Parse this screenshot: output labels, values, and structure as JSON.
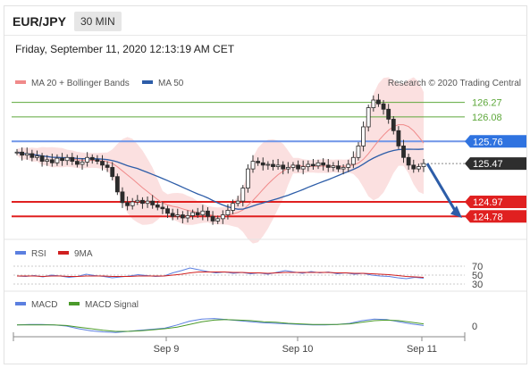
{
  "header": {
    "symbol": "EUR/JPY",
    "timeframe": "30 MIN"
  },
  "datetime": "Friday, September 11, 2020 12:13:19 AM CET",
  "copyright": "Research © 2020 Trading Central",
  "colors": {
    "resistance_green": "#5ea83b",
    "ma50_blue": "#2d5da8",
    "support_red": "#e02020",
    "label_blue": "#2f73e0",
    "label_dark": "#2e2e2e",
    "bollinger": "#f4a6a6",
    "up_candle": "#2b2b2b",
    "down_candle": "#2b2b2b",
    "arrow": "#2d5da8",
    "rsi": "#5b7fe0",
    "rsi_ma": "#d02020",
    "macd": "#5b7fe0",
    "macd_signal": "#4a9a2a"
  },
  "chart_data": [
    {
      "type": "candlestick",
      "legend": [
        {
          "name": "MA 20 + Bollinger Bands",
          "color": "#f08a8a"
        },
        {
          "name": "MA 50",
          "color": "#2d5da8"
        }
      ],
      "ylim": [
        124.5,
        126.5
      ],
      "x_ticks": [
        "Sep 9",
        "Sep 10",
        "Sep 11"
      ],
      "levels": [
        {
          "value": "126.27",
          "kind": "resistance",
          "color": "#5ea83b"
        },
        {
          "value": "126.08",
          "kind": "resistance",
          "color": "#5ea83b"
        },
        {
          "value": "125.76",
          "kind": "pivot",
          "color": "#2f73e0"
        },
        {
          "value": "125.47",
          "kind": "last",
          "color": "#2e2e2e"
        },
        {
          "value": "124.97",
          "kind": "support",
          "color": "#e02020"
        },
        {
          "value": "124.78",
          "kind": "support",
          "color": "#e02020"
        }
      ],
      "close_path": [
        125.62,
        125.58,
        125.6,
        125.55,
        125.57,
        125.5,
        125.52,
        125.48,
        125.54,
        125.51,
        125.55,
        125.5,
        125.46,
        125.49,
        125.55,
        125.52,
        125.5,
        125.45,
        125.42,
        125.3,
        125.1,
        124.96,
        124.92,
        124.97,
        124.99,
        124.95,
        124.98,
        124.93,
        124.9,
        124.88,
        124.82,
        124.78,
        124.8,
        124.76,
        124.79,
        124.83,
        124.8,
        124.85,
        124.78,
        124.72,
        124.75,
        124.8,
        124.86,
        124.95,
        124.98,
        125.15,
        125.4,
        125.5,
        125.48,
        125.45,
        125.46,
        125.43,
        125.45,
        125.4,
        125.42,
        125.45,
        125.4,
        125.43,
        125.46,
        125.44,
        125.48,
        125.45,
        125.42,
        125.44,
        125.4,
        125.42,
        125.46,
        125.55,
        125.7,
        125.95,
        126.2,
        126.3,
        126.25,
        126.18,
        126.05,
        125.9,
        125.7,
        125.55,
        125.45,
        125.4,
        125.43,
        125.47
      ]
    },
    {
      "type": "line",
      "legend": [
        {
          "name": "RSI",
          "color": "#5b7fe0"
        },
        {
          "name": "9MA",
          "color": "#d02020"
        }
      ],
      "ylim": [
        30,
        70
      ],
      "y_ticks": [
        "70",
        "50",
        "30"
      ],
      "series": [
        {
          "name": "RSI",
          "values": [
            48,
            47,
            49,
            46,
            50,
            48,
            45,
            47,
            52,
            49,
            47,
            44,
            46,
            48,
            51,
            49,
            47,
            48,
            55,
            60,
            66,
            62,
            58,
            55,
            57,
            54,
            56,
            53,
            55,
            52,
            56,
            60,
            57,
            54,
            58,
            55,
            57,
            53,
            55,
            52,
            54,
            50,
            48,
            47,
            44,
            42,
            45,
            43
          ]
        },
        {
          "name": "9MA",
          "values": [
            48,
            48,
            48,
            47,
            48,
            48,
            47,
            47,
            48,
            48,
            48,
            47,
            47,
            47,
            48,
            48,
            48,
            48,
            50,
            52,
            55,
            57,
            57,
            57,
            57,
            56,
            56,
            55,
            55,
            54,
            55,
            56,
            56,
            56,
            56,
            56,
            56,
            55,
            55,
            54,
            54,
            53,
            52,
            51,
            49,
            47,
            46,
            45
          ]
        }
      ]
    },
    {
      "type": "line",
      "legend": [
        {
          "name": "MACD",
          "color": "#5b7fe0"
        },
        {
          "name": "MACD Signal",
          "color": "#4a9a2a"
        }
      ],
      "y_ticks": [
        "0"
      ],
      "series": [
        {
          "name": "MACD",
          "values": [
            0.02,
            0.03,
            0.03,
            0.02,
            0.0,
            -0.05,
            -0.09,
            -0.11,
            -0.12,
            -0.1,
            -0.08,
            -0.06,
            -0.04,
            0.02,
            0.09,
            0.13,
            0.14,
            0.12,
            0.1,
            0.08,
            0.06,
            0.05,
            0.04,
            0.03,
            0.02,
            0.02,
            0.03,
            0.05,
            0.1,
            0.13,
            0.12,
            0.08,
            0.04,
            0.01
          ]
        },
        {
          "name": "MACD Signal",
          "values": [
            0.02,
            0.02,
            0.02,
            0.02,
            0.01,
            -0.02,
            -0.05,
            -0.08,
            -0.1,
            -0.1,
            -0.09,
            -0.07,
            -0.05,
            -0.02,
            0.03,
            0.08,
            0.11,
            0.12,
            0.11,
            0.1,
            0.08,
            0.07,
            0.05,
            0.04,
            0.03,
            0.03,
            0.03,
            0.04,
            0.07,
            0.1,
            0.11,
            0.1,
            0.07,
            0.04
          ]
        }
      ]
    }
  ]
}
